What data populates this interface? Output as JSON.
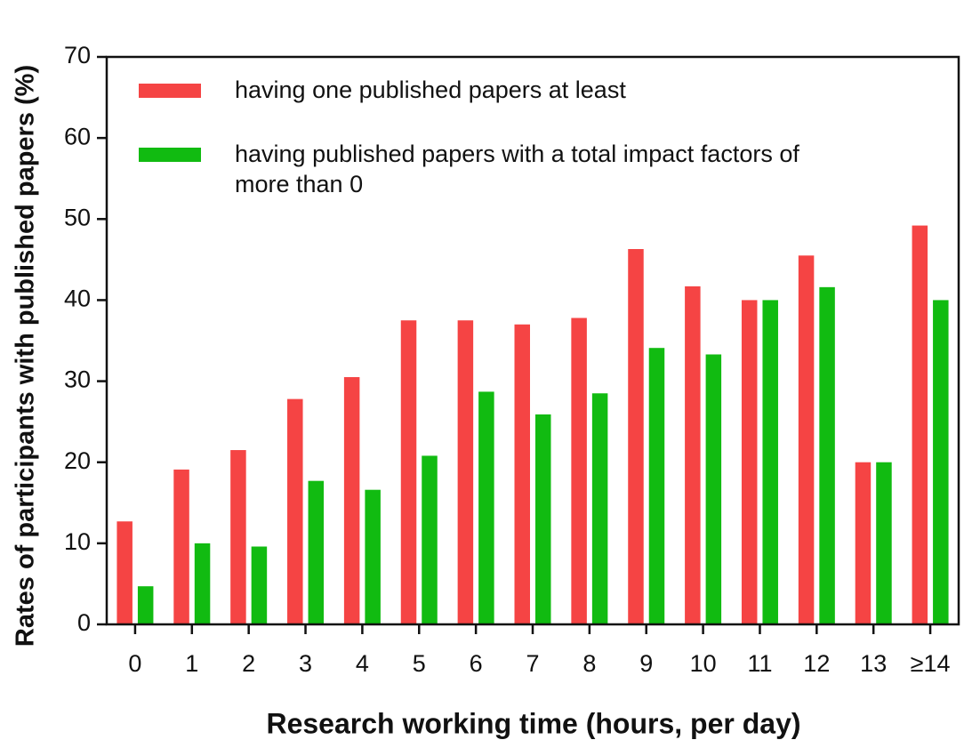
{
  "chart_data": {
    "type": "bar",
    "x_label": "Research working time (hours, per day)",
    "y_label": "Rates of participants with published papers (%)",
    "categories": [
      "0",
      "1",
      "2",
      "3",
      "4",
      "5",
      "6",
      "7",
      "8",
      "9",
      "10",
      "11",
      "12",
      "13",
      "≥14"
    ],
    "series": [
      {
        "name": "having one published papers at least",
        "color": "#f54444",
        "values": [
          12.7,
          19.1,
          21.5,
          27.8,
          30.5,
          37.5,
          37.5,
          37.0,
          37.8,
          46.3,
          41.7,
          40.0,
          45.5,
          20.0,
          49.2
        ]
      },
      {
        "name": "having published papers with a total impact factors of more than 0",
        "color": "#11bb11",
        "values": [
          4.7,
          10.0,
          9.6,
          17.7,
          16.6,
          20.8,
          28.7,
          25.9,
          28.5,
          34.1,
          33.3,
          40.0,
          41.6,
          20.0,
          40.0
        ]
      }
    ],
    "ylim": [
      0,
      70
    ],
    "yticks": [
      0,
      10,
      20,
      30,
      40,
      50,
      60,
      70
    ],
    "grid": false,
    "legend": "upper left"
  }
}
